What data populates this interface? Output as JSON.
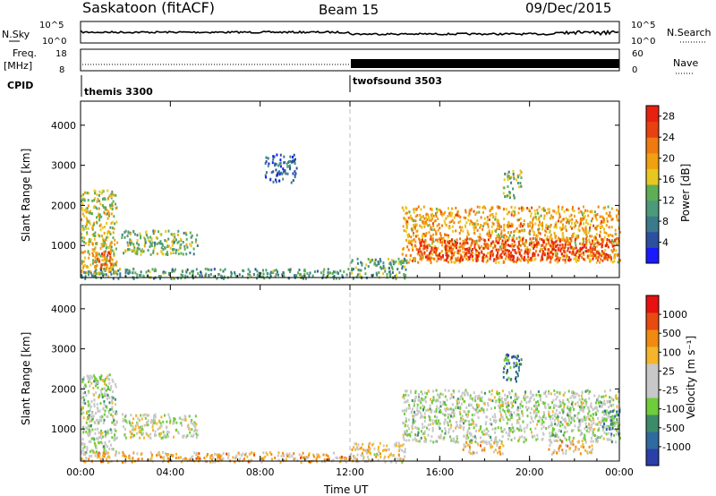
{
  "header": {
    "station": "Saskatoon (fitACF)",
    "beam": "Beam 15",
    "date": "09/Dec/2015"
  },
  "strip": {
    "nsky_label": "N.Sky",
    "nsearch_label": "N.Search",
    "freq_label_1": "Freq.",
    "freq_label_2": "[MHz]",
    "nave_label": "Nave",
    "cpid_label": "CPID",
    "nsky_ticks": [
      "10^5",
      "10^0"
    ],
    "nsearch_ticks": [
      "10^5",
      "10^0"
    ],
    "freq_ticks": [
      "18",
      "8"
    ],
    "nave_ticks": [
      "60",
      "0"
    ],
    "cpid_segments": [
      {
        "label": "themis 3300",
        "start_hour": 0,
        "end_hour": 12
      },
      {
        "label": "twofsound 3503",
        "start_hour": 12,
        "end_hour": 24
      }
    ]
  },
  "colors": {
    "power_scale": [
      "#1a1aff",
      "#2c4fa0",
      "#3a7a8c",
      "#4c9a7a",
      "#5fae55",
      "#e8c820",
      "#f0a010",
      "#f07a10",
      "#e84010",
      "#e82010"
    ],
    "velocity_scale": [
      "#2a3fa8",
      "#2f6aa0",
      "#3c8c6a",
      "#6fcc3a",
      "#c8c8c8",
      "#c8c8c8",
      "#f5b52a",
      "#f08a10",
      "#e84a10",
      "#e81010"
    ]
  },
  "chart_data": [
    {
      "type": "heatmap",
      "panel": "power",
      "ylabel": "Slant Range [km]",
      "xlim": [
        0,
        24
      ],
      "ylim": [
        200,
        4600
      ],
      "yticks": [
        1000,
        2000,
        3000,
        4000
      ],
      "colorbar_label": "Power [dB]",
      "colorbar_ticks": [
        4,
        8,
        12,
        16,
        20,
        24,
        28
      ],
      "colorbar_range": [
        0,
        30
      ],
      "regions": [
        {
          "t0": 0.0,
          "t1": 1.6,
          "r0": 300,
          "r1": 2400,
          "level": 0.55
        },
        {
          "t0": 0.6,
          "t1": 1.4,
          "r0": 400,
          "r1": 900,
          "level": 0.75
        },
        {
          "t0": 1.8,
          "t1": 5.2,
          "r0": 800,
          "r1": 1400,
          "level": 0.45
        },
        {
          "t0": 0.0,
          "t1": 12.0,
          "r0": 200,
          "r1": 450,
          "level": 0.35
        },
        {
          "t0": 8.2,
          "t1": 9.6,
          "r0": 2600,
          "r1": 3300,
          "level": 0.2
        },
        {
          "t0": 14.3,
          "t1": 24.0,
          "r0": 600,
          "r1": 2000,
          "level": 0.65
        },
        {
          "t0": 15.0,
          "t1": 23.8,
          "r0": 650,
          "r1": 1200,
          "level": 0.9
        },
        {
          "t0": 18.8,
          "t1": 19.6,
          "r0": 2200,
          "r1": 2900,
          "level": 0.45
        },
        {
          "t0": 12.0,
          "t1": 14.5,
          "r0": 200,
          "r1": 700,
          "level": 0.4
        }
      ]
    },
    {
      "type": "heatmap",
      "panel": "velocity",
      "xlabel": "Time UT",
      "ylabel": "Slant Range [km]",
      "xlim": [
        0,
        24
      ],
      "xticks": [
        "00:00",
        "04:00",
        "08:00",
        "12:00",
        "16:00",
        "20:00",
        "00:00"
      ],
      "ylim": [
        200,
        4600
      ],
      "yticks": [
        1000,
        2000,
        3000,
        4000
      ],
      "colorbar_label": "Velocity [m s⁻¹]",
      "colorbar_ticks": [
        1000,
        500,
        100,
        25,
        -25,
        -100,
        -500,
        -1000
      ],
      "regions": [
        {
          "t0": 0.0,
          "t1": 1.6,
          "r0": 400,
          "r1": 2400,
          "level": 0.45
        },
        {
          "t0": 1.8,
          "t1": 5.2,
          "r0": 800,
          "r1": 1400,
          "level": 0.5
        },
        {
          "t0": 0.0,
          "t1": 12.0,
          "r0": 200,
          "r1": 450,
          "level": 0.65
        },
        {
          "t0": 14.3,
          "t1": 24.0,
          "r0": 700,
          "r1": 2000,
          "level": 0.45
        },
        {
          "t0": 17.0,
          "t1": 18.8,
          "r0": 400,
          "r1": 700,
          "level": 0.65
        },
        {
          "t0": 20.8,
          "t1": 22.8,
          "r0": 400,
          "r1": 750,
          "level": 0.65
        },
        {
          "t0": 23.2,
          "t1": 24.0,
          "r0": 900,
          "r1": 1500,
          "level": 0.3
        },
        {
          "t0": 18.8,
          "t1": 19.6,
          "r0": 2200,
          "r1": 2900,
          "level": 0.2
        },
        {
          "t0": 12.0,
          "t1": 14.5,
          "r0": 200,
          "r1": 700,
          "level": 0.55
        }
      ]
    }
  ]
}
